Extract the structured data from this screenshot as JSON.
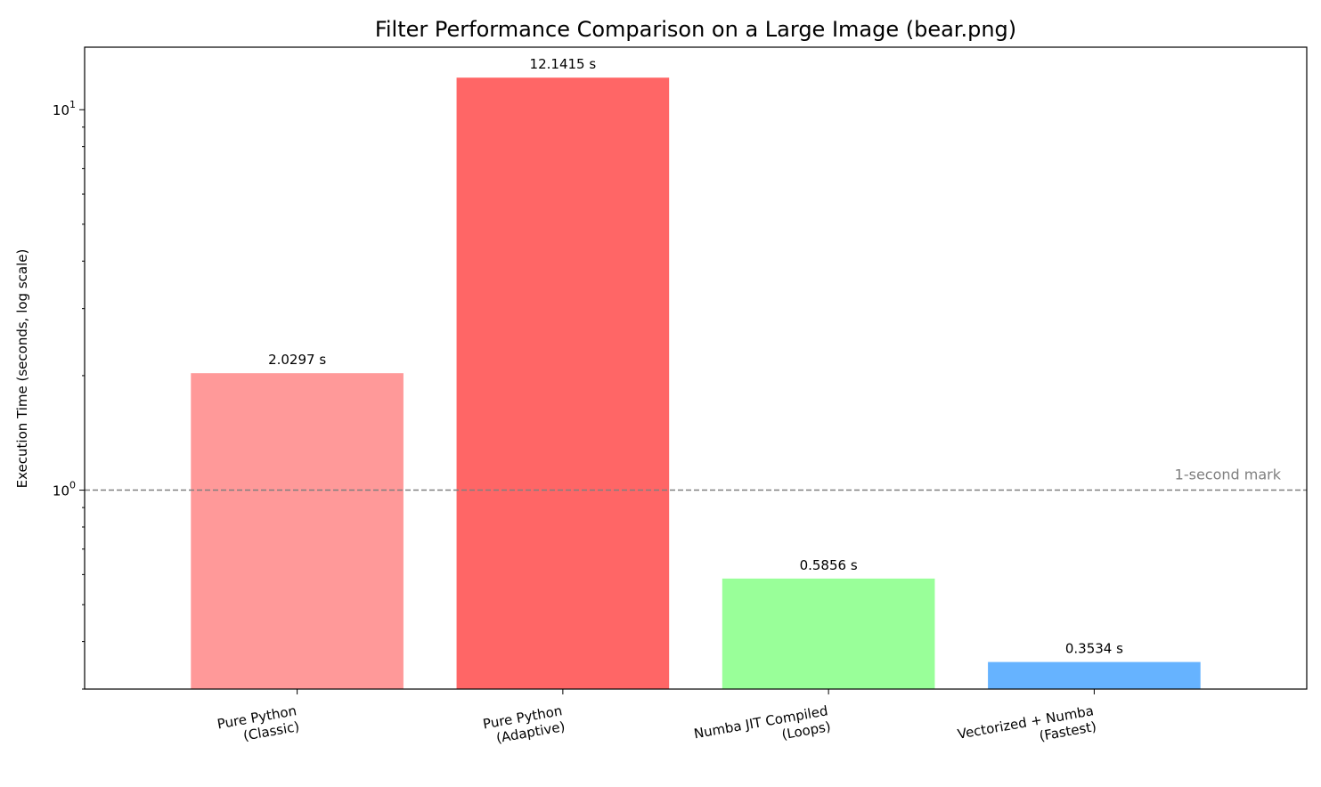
{
  "chart_data": {
    "type": "bar",
    "title": "Filter Performance Comparison on a Large Image (bear.png)",
    "xlabel": "",
    "ylabel": "Execution Time (seconds, log scale)",
    "yscale": "log",
    "ylim": [
      0.3,
      14.6
    ],
    "categories": [
      [
        "Pure Python",
        "(Classic)"
      ],
      [
        "Pure Python",
        "(Adaptive)"
      ],
      [
        "Numba JIT Compiled",
        "(Loops)"
      ],
      [
        "Vectorized + Numba",
        "(Fastest)"
      ]
    ],
    "values": [
      2.0297,
      12.1415,
      0.5856,
      0.3534
    ],
    "value_labels": [
      "2.0297 s",
      "12.1415 s",
      "0.5856 s",
      "0.3534 s"
    ],
    "colors": [
      "#ff9999",
      "#ff6666",
      "#99ff99",
      "#66b3ff"
    ],
    "major_ticks": [
      {
        "value": 1,
        "base": "10",
        "exp": "0"
      },
      {
        "value": 10,
        "base": "10",
        "exp": "1"
      }
    ],
    "reference_line": {
      "value": 1,
      "label": "1-second mark",
      "color": "#808080"
    },
    "grid": false,
    "legend": "none"
  }
}
